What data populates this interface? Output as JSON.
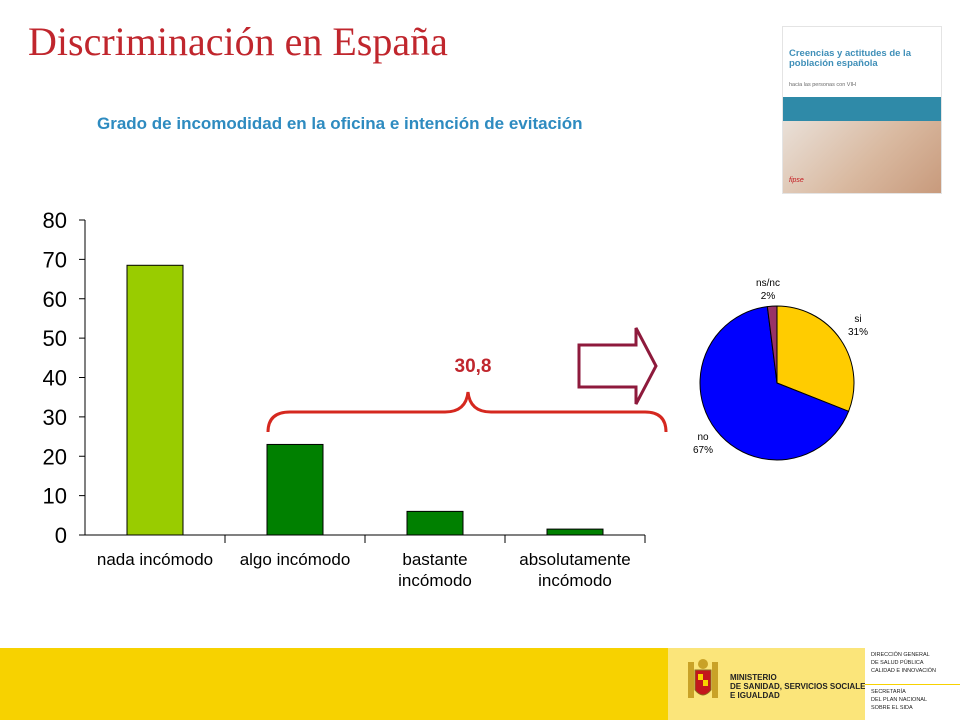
{
  "slide": {
    "title": "Discriminación en España"
  },
  "cover": {
    "title": "Creencias y actitudes de la población española",
    "subtitle": "hacia las personas con VIH",
    "logo": "fipse"
  },
  "footer": {
    "ministry": [
      "MINISTERIO",
      "DE SANIDAD, SERVICIOS SOCIALES",
      "E IGUALDAD"
    ],
    "direction": [
      "DIRECCIÓN GENERAL",
      "DE SALUD PÚBLICA",
      "CALIDAD E INNOVACIÓN"
    ],
    "secretariat": [
      "SECRETARÍA",
      "DEL PLAN NACIONAL",
      "SOBRE EL SIDA"
    ]
  },
  "chart_data": [
    {
      "type": "bar",
      "title": "Grado de incomodidad en la oficina e intención de evitación",
      "categories": [
        [
          "nada incómodo"
        ],
        [
          "algo incómodo"
        ],
        [
          "bastante",
          "incómodo"
        ],
        [
          "absolutamente",
          "incómodo"
        ]
      ],
      "values": [
        68.5,
        23,
        6,
        1.5
      ],
      "colors": [
        "#99cc00",
        "#008000",
        "#008000",
        "#008000"
      ],
      "ylim": [
        0,
        80
      ],
      "yticks": [
        0,
        10,
        20,
        30,
        40,
        50,
        60,
        70,
        80
      ],
      "grid": false,
      "annotation": {
        "text": "30,8",
        "color": "#c0262d"
      }
    },
    {
      "type": "pie",
      "slices": [
        {
          "label": "si",
          "value_label": "31%",
          "value": 31,
          "color": "#ffcc00"
        },
        {
          "label": "no",
          "value_label": "67%",
          "value": 67,
          "color": "#0000ff"
        },
        {
          "label": "ns/nc",
          "value_label": "2%",
          "value": 2,
          "color": "#993366"
        }
      ]
    }
  ]
}
